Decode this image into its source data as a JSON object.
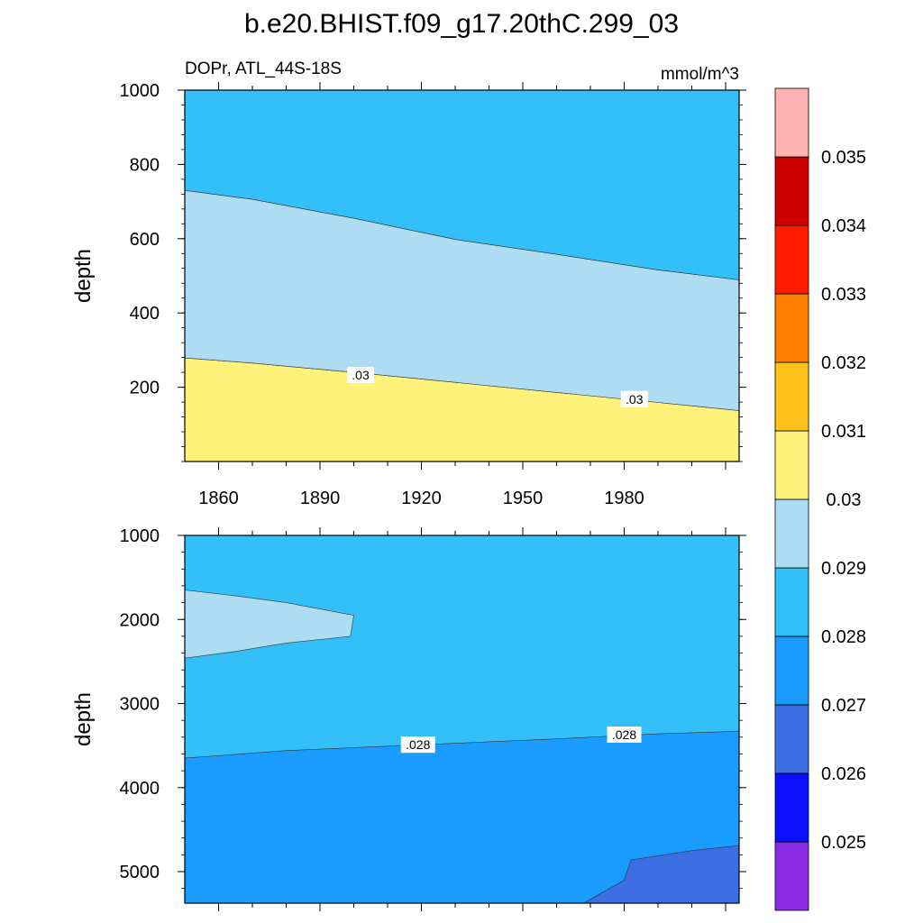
{
  "title": "b.e20.BHIST.f09_g17.20thC.299_03",
  "chart_data": [
    {
      "type": "contour",
      "panel": "upper",
      "left_string": "DOPr, ATL_44S-18S",
      "right_string": "mmol/m^3",
      "ylabel": "depth",
      "xlabel": "",
      "xlim": [
        1850,
        2014
      ],
      "ylim": [
        1000,
        0
      ],
      "xticks": [
        1860,
        1890,
        1920,
        1950,
        1980
      ],
      "yticks": [
        200,
        400,
        600,
        800,
        1000
      ],
      "grid": false,
      "fills": [
        {
          "level": "0.030-0.031",
          "color": "#fff27a",
          "boundary_top": [
            [
              1850,
              0
            ],
            [
              2014,
              0
            ]
          ],
          "boundary_bottom": [
            [
              1850,
              279
            ],
            [
              1870,
              265
            ],
            [
              1900,
              240
            ],
            [
              1930,
              213
            ],
            [
              1960,
              186
            ],
            [
              1990,
              159
            ],
            [
              2014,
              137
            ]
          ]
        },
        {
          "level": "0.029-0.030",
          "color": "#aedcf2",
          "boundary_top": [
            [
              1850,
              279
            ],
            [
              1870,
              265
            ],
            [
              1900,
              240
            ],
            [
              1930,
              213
            ],
            [
              1960,
              186
            ],
            [
              1990,
              159
            ],
            [
              2014,
              137
            ]
          ],
          "boundary_bottom": [
            [
              1850,
              730
            ],
            [
              1870,
              706
            ],
            [
              1900,
              655
            ],
            [
              1930,
              598
            ],
            [
              1960,
              558
            ],
            [
              1990,
              516
            ],
            [
              2014,
              489
            ]
          ]
        },
        {
          "level": "0.028-0.029",
          "color": "#33bff7",
          "boundary_top": [
            [
              1850,
              730
            ],
            [
              1870,
              706
            ],
            [
              1900,
              655
            ],
            [
              1930,
              598
            ],
            [
              1960,
              558
            ],
            [
              1990,
              516
            ],
            [
              2014,
              489
            ]
          ],
          "boundary_bottom": [
            [
              1850,
              1000
            ],
            [
              2014,
              1000
            ]
          ]
        }
      ],
      "contour_labels": [
        {
          "text": ".03",
          "x": 1902,
          "y": 233
        },
        {
          "text": ".03",
          "x": 1983,
          "y": 168
        }
      ]
    },
    {
      "type": "contour",
      "panel": "lower",
      "ylabel": "depth",
      "xlabel": "",
      "xlim": [
        1850,
        2014
      ],
      "ylim": [
        1000,
        5375
      ],
      "yticks": [
        1000,
        2000,
        3000,
        4000,
        5000
      ],
      "grid": false,
      "fills": [
        {
          "level": "0.028-0.029",
          "color": "#33bff7",
          "boundary": "background"
        },
        {
          "level": "0.029-0.030",
          "color": "#aedcf2",
          "polygon": [
            [
              1850,
              1650
            ],
            [
              1865,
              1720
            ],
            [
              1880,
              1800
            ],
            [
              1900,
              1950
            ],
            [
              1899,
              2200
            ],
            [
              1880,
              2280
            ],
            [
              1865,
              2380
            ],
            [
              1850,
              2460
            ]
          ]
        },
        {
          "level": "0.027-0.028",
          "color": "#1a9cff",
          "boundary_top": [
            [
              1850,
              3650
            ],
            [
              1880,
              3560
            ],
            [
              1920,
              3490
            ],
            [
              1960,
              3420
            ],
            [
              1990,
              3360
            ],
            [
              2014,
              3330
            ]
          ],
          "boundary_bottom": [
            [
              1850,
              5375
            ],
            [
              2014,
              5375
            ]
          ]
        },
        {
          "level": "0.026-0.027",
          "color": "#3c6de2",
          "polygon": [
            [
              1968,
              5375
            ],
            [
              1980,
              5100
            ],
            [
              1982,
              4860
            ],
            [
              2000,
              4750
            ],
            [
              2014,
              4690
            ],
            [
              2014,
              5375
            ]
          ]
        }
      ],
      "contour_labels": [
        {
          "text": ".028",
          "x": 1919,
          "y": 3490
        },
        {
          "text": ".028",
          "x": 1980,
          "y": 3370
        }
      ]
    }
  ],
  "colorbar": {
    "colors": [
      "#8a2be2",
      "#0a10ff",
      "#3c6de2",
      "#1a9cff",
      "#33bff7",
      "#aedcf2",
      "#fff27a",
      "#ffc21a",
      "#ff8000",
      "#ff1a00",
      "#cc0000",
      "#ffb3b3"
    ],
    "labels": [
      "0.025",
      "0.026",
      "0.027",
      "0.028",
      "0.029",
      "0.03",
      "0.031",
      "0.032",
      "0.033",
      "0.034",
      "0.035"
    ]
  }
}
